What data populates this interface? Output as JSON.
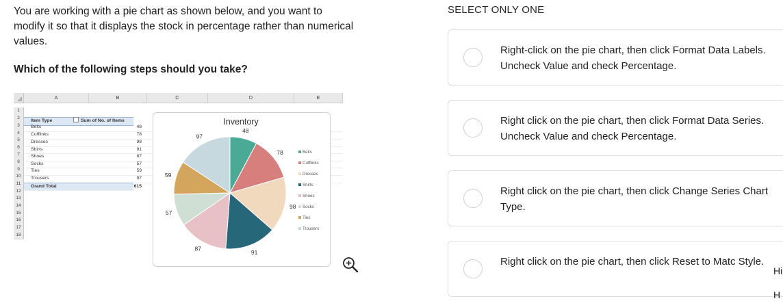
{
  "question": {
    "text": "You are working with a pie chart as shown below, and you want to modify it so that it displays the stock in percentage rather than numerical values.",
    "prompt": "Which of the following steps should you take?"
  },
  "spreadsheet": {
    "columns": [
      "A",
      "B",
      "C",
      "D",
      "E"
    ],
    "row_numbers": [
      "1",
      "2",
      "3",
      "4",
      "5",
      "6",
      "7",
      "8",
      "9",
      "10",
      "11",
      "12",
      "13",
      "14",
      "15",
      "16",
      "17",
      "18"
    ],
    "header": {
      "a": "Item Type",
      "b": "Sum of No. of Items"
    },
    "rows": [
      {
        "a": "Belts",
        "b": "48"
      },
      {
        "a": "Cufflinks",
        "b": "78"
      },
      {
        "a": "Dresses",
        "b": "98"
      },
      {
        "a": "Shirts",
        "b": "91"
      },
      {
        "a": "Shoes",
        "b": "87"
      },
      {
        "a": "Socks",
        "b": "57"
      },
      {
        "a": "Ties",
        "b": "59"
      },
      {
        "a": "Trousers",
        "b": "97"
      }
    ],
    "total": {
      "a": "Grand Total",
      "b": "615"
    }
  },
  "chart_data": {
    "type": "pie",
    "title": "Inventory",
    "categories": [
      "Belts",
      "Cufflinks",
      "Dresses",
      "Shirts",
      "Shoes",
      "Socks",
      "Ties",
      "Trousers"
    ],
    "values": [
      48,
      78,
      98,
      91,
      87,
      57,
      59,
      97
    ],
    "colors": [
      "#4aaa96",
      "#d67f7d",
      "#f1d9bd",
      "#27677a",
      "#e7c1c6",
      "#cfdfd3",
      "#d4a65d",
      "#c7d9de"
    ],
    "legend_position": "right",
    "data_labels": true
  },
  "options_header": "SELECT ONLY ONE",
  "options": [
    {
      "label": "Right-click on the pie chart, then click Format Data Labels. Uncheck Value and check Percentage."
    },
    {
      "label": "Right click on the pie chart, then click Format Data Series. Uncheck Value and check Percentage."
    },
    {
      "label": "Right click on the pie chart, then click Change Series Chart Type."
    },
    {
      "label": "Right click on the pie chart, then click Reset to Matc Style."
    }
  ],
  "side_peek": [
    "Hi",
    "H"
  ],
  "icons": {
    "zoom": "zoom-in-icon"
  }
}
